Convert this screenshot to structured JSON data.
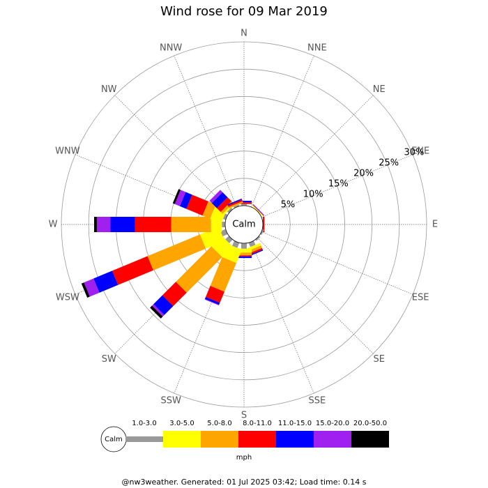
{
  "chart_data": {
    "type": "windrose",
    "title": "Wind rose for 09 Mar 2019",
    "categories": [
      "N",
      "NNE",
      "NE",
      "ENE",
      "E",
      "ESE",
      "SE",
      "SSE",
      "S",
      "SSW",
      "SW",
      "WSW",
      "W",
      "WNW",
      "NW",
      "NNW"
    ],
    "calm_label": "Calm",
    "units": "mph",
    "footer": "@nw3weather. Generated: 01 Jul 2025 03:42; Load time: 0.14 s",
    "rlim": [
      0,
      30
    ],
    "rticks": [
      {
        "value": 5,
        "label": "5%"
      },
      {
        "value": 10,
        "label": "10%"
      },
      {
        "value": 15,
        "label": "15%"
      },
      {
        "value": 20,
        "label": "20%"
      },
      {
        "value": 25,
        "label": "25%"
      },
      {
        "value": 30,
        "label": "30%"
      }
    ],
    "series": [
      {
        "name": "1.0-3.0",
        "color": "#999999",
        "values": [
          0.3,
          0,
          0,
          0,
          0,
          0.3,
          0.3,
          0.8,
          1.0,
          1.0,
          0.9,
          1.0,
          0.6,
          0.5,
          0.4,
          0.3
        ]
      },
      {
        "name": "3.0-5.0",
        "color": "#ffff00",
        "values": [
          0,
          0,
          0.2,
          0,
          0,
          0,
          0,
          0.5,
          0.7,
          2.6,
          2.7,
          3.7,
          2.0,
          2.2,
          0.3,
          0
        ]
      },
      {
        "name": "5.0-8.0",
        "color": "#ffa500",
        "values": [
          0,
          0,
          0,
          0,
          0,
          0,
          0,
          0.5,
          0.5,
          5.7,
          9.2,
          10.4,
          7.3,
          1.5,
          0.5,
          0.3
        ]
      },
      {
        "name": "8.0-11.0",
        "color": "#ff0000",
        "values": [
          0.3,
          0,
          0,
          0,
          0.3,
          0,
          0,
          0.3,
          0.2,
          2.2,
          3.5,
          7.0,
          6.6,
          3.2,
          1.0,
          0.3
        ]
      },
      {
        "name": "11.0-15.0",
        "color": "#0000ff",
        "values": [
          0.3,
          0,
          0,
          0,
          0,
          0,
          0,
          0.2,
          0.3,
          0.4,
          2.3,
          3.7,
          4.5,
          1.3,
          1.3,
          0.2
        ]
      },
      {
        "name": "15.0-20.0",
        "color": "#a020f0",
        "values": [
          0,
          0,
          0.2,
          0,
          0,
          0,
          0,
          0,
          0,
          0.1,
          0.4,
          1.9,
          2.5,
          1.0,
          0.6,
          0
        ]
      },
      {
        "name": "20.0-50.0",
        "color": "#000000",
        "values": [
          0,
          0,
          0,
          0,
          0,
          0,
          0,
          0,
          0,
          0,
          0.5,
          0.5,
          0.5,
          0.4,
          0,
          0
        ]
      }
    ]
  }
}
